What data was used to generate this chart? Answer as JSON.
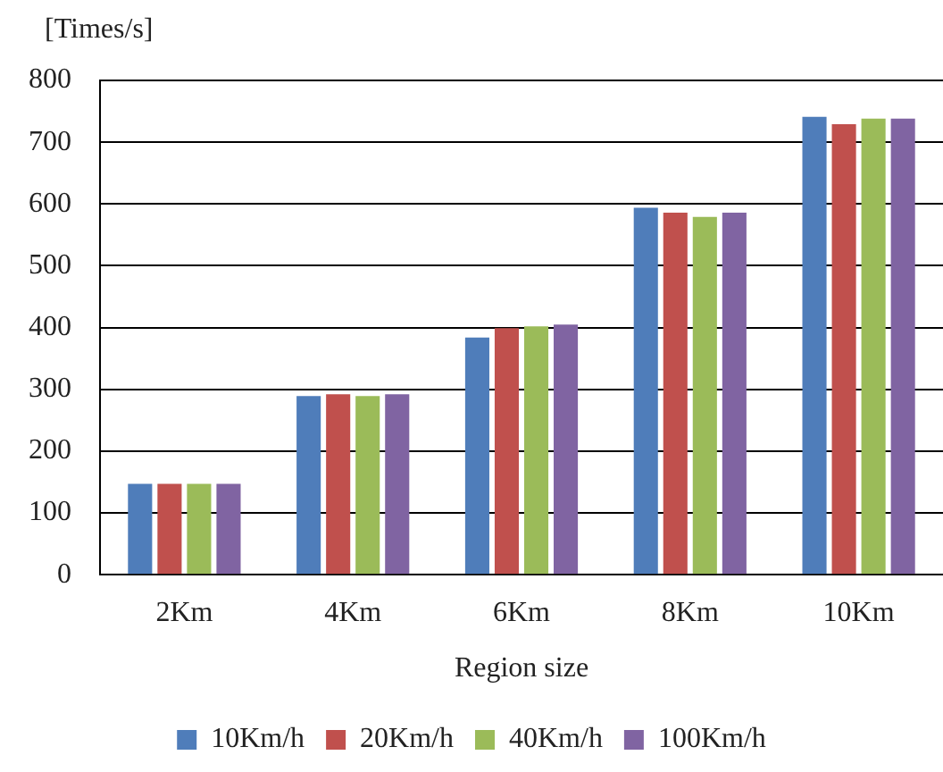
{
  "chart_data": {
    "type": "bar",
    "ylabel": "[Times/s]",
    "xlabel": "Region size",
    "categories": [
      "2Km",
      "4Km",
      "6Km",
      "8Km",
      "10Km"
    ],
    "series": [
      {
        "name": "10Km/h",
        "color": "#4f7dba",
        "values": [
          147,
          289,
          384,
          594,
          741
        ]
      },
      {
        "name": "20Km/h",
        "color": "#c0504d",
        "values": [
          147,
          292,
          399,
          586,
          729
        ]
      },
      {
        "name": "40Km/h",
        "color": "#9bbb59",
        "values": [
          147,
          289,
          402,
          579,
          738
        ]
      },
      {
        "name": "100Km/h",
        "color": "#8064a2",
        "values": [
          147,
          292,
          405,
          586,
          738
        ]
      }
    ],
    "ylim": [
      0,
      800
    ],
    "yticks": [
      0,
      100,
      200,
      300,
      400,
      500,
      600,
      700,
      800
    ],
    "grid": "y",
    "legend": "bottom"
  }
}
